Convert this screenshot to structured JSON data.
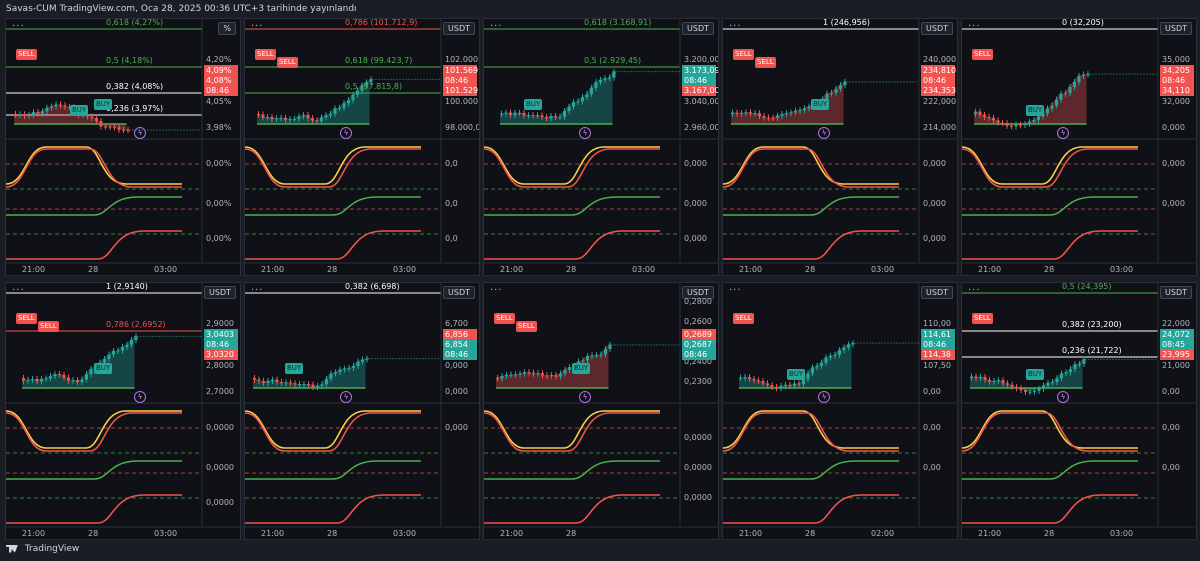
{
  "header": {
    "publish_info": "Savas-CUM TradingView.com, Oca 28, 2025 00:36 UTC+3 tarihinde yayınlandı"
  },
  "footer": {
    "brand": "TradingView"
  },
  "panels": [
    {
      "currency": "%",
      "axis": [
        "4,20%",
        "4,05%",
        "3,98%",
        "0,00%",
        "0,00%",
        "0,00%"
      ],
      "fibs": [
        {
          "label": "0,618 (4,27%)",
          "color": "#4caf50"
        },
        {
          "label": "0,5 (4,18%)",
          "color": "#4caf50"
        },
        {
          "label": "0,382 (4,08%)",
          "color": "#ffffff"
        },
        {
          "label": "0,236 (3,97%)",
          "color": "#ffffff"
        }
      ],
      "price_boxes": [
        {
          "text": "4,09%",
          "color": "red"
        },
        {
          "text": "4,08%",
          "color": "red"
        },
        {
          "text": "08:46",
          "color": "red"
        }
      ],
      "times": [
        "21:00",
        "28",
        "03:00"
      ],
      "tags": [
        "SELL",
        "BUY",
        "BUY"
      ]
    },
    {
      "currency": "USDT",
      "axis": [
        "102.000,0",
        "100.000,0",
        "98.000,0",
        "0,0",
        "0,0",
        "0,0"
      ],
      "fibs": [
        {
          "label": "0,786 (101.712,9)",
          "color": "#f05350"
        },
        {
          "label": "0,618 (99.423,7)",
          "color": "#4caf50"
        },
        {
          "label": "0,5 (97.815,8)",
          "color": "#4caf50"
        }
      ],
      "price_boxes": [
        {
          "text": "101.569,2",
          "color": "red"
        },
        {
          "text": "08:46",
          "color": "red"
        },
        {
          "text": "101.529,3",
          "color": "red"
        }
      ],
      "times": [
        "21:00",
        "28",
        "03:00"
      ],
      "tags": [
        "SELL",
        "SELL"
      ]
    },
    {
      "currency": "USDT",
      "axis": [
        "3.200,00",
        "3.040,00",
        "2.960,00",
        "0,000",
        "0,000",
        "0,000"
      ],
      "fibs": [
        {
          "label": "0,618 (3.168,91)",
          "color": "#4caf50"
        },
        {
          "label": "0,5 (2.929,45)",
          "color": "#4caf50"
        }
      ],
      "price_boxes": [
        {
          "text": "3.173,09",
          "color": "green"
        },
        {
          "text": "08:46",
          "color": "green"
        },
        {
          "text": "3.167,00",
          "color": "red"
        }
      ],
      "times": [
        "21:00",
        "28",
        "03:00"
      ],
      "tags": [
        "BUY"
      ]
    },
    {
      "currency": "USDT",
      "axis": [
        "240,000",
        "222,000",
        "214,000",
        "0,000",
        "0,000",
        "0,000"
      ],
      "fibs": [
        {
          "label": "1 (246,956)",
          "color": "#ffffff"
        }
      ],
      "price_boxes": [
        {
          "text": "234,810",
          "color": "red"
        },
        {
          "text": "08:46",
          "color": "red"
        },
        {
          "text": "234,353",
          "color": "red"
        }
      ],
      "times": [
        "21:00",
        "28",
        "03:00"
      ],
      "tags": [
        "SELL",
        "SELL",
        "BUY"
      ]
    },
    {
      "currency": "USDT",
      "axis": [
        "35,000",
        "32,000",
        "0,000",
        "0,000",
        "0,000"
      ],
      "fibs": [
        {
          "label": "0 (32,205)",
          "color": "#ffffff"
        }
      ],
      "price_boxes": [
        {
          "text": "34,205",
          "color": "red"
        },
        {
          "text": "08:46",
          "color": "red"
        },
        {
          "text": "34,110",
          "color": "red"
        }
      ],
      "times": [
        "21:00",
        "28",
        "03:00"
      ],
      "tags": [
        "SELL",
        "BUY"
      ]
    },
    {
      "currency": "USDT",
      "axis": [
        "2,9000",
        "2,8000",
        "2,7000",
        "0,0000",
        "0,0000",
        "0,0000"
      ],
      "fibs": [
        {
          "label": "1 (2,9140)",
          "color": "#ffffff"
        },
        {
          "label": "0,786 (2,6952)",
          "color": "#f05350"
        }
      ],
      "price_boxes": [
        {
          "text": "3,0403",
          "color": "green"
        },
        {
          "text": "08:46",
          "color": "green"
        },
        {
          "text": "3,0320",
          "color": "red"
        }
      ],
      "times": [
        "21:00",
        "28",
        "03:00"
      ],
      "tags": [
        "SELL",
        "SELL",
        "BUY"
      ]
    },
    {
      "currency": "USDT",
      "axis": [
        "6,700",
        "0,000",
        "0,000",
        "0,000"
      ],
      "fibs": [
        {
          "label": "0,382 (6,698)",
          "color": "#ffffff"
        }
      ],
      "price_boxes": [
        {
          "text": "6,856",
          "color": "red"
        },
        {
          "text": "6,854",
          "color": "green"
        },
        {
          "text": "08:46",
          "color": "green"
        }
      ],
      "times": [
        "21:00",
        "28",
        "03:00"
      ],
      "tags": [
        "BUY"
      ]
    },
    {
      "currency": "USDT",
      "axis": [
        "0,2800",
        "0,2600",
        "0,2500",
        "0,2400",
        "0,2300",
        "0,0000",
        "0,0000",
        "0,0000"
      ],
      "fibs": [],
      "price_boxes": [
        {
          "text": "0,2689",
          "color": "red"
        },
        {
          "text": "0,2687",
          "color": "green"
        },
        {
          "text": "08:46",
          "color": "green"
        }
      ],
      "times": [
        "21:00",
        "28"
      ],
      "tags": [
        "SELL",
        "SELL",
        "BUY"
      ]
    },
    {
      "currency": "USDT",
      "axis": [
        "110,00",
        "107,50",
        "0,00",
        "0,00",
        "0,00"
      ],
      "fibs": [],
      "price_boxes": [
        {
          "text": "114,61",
          "color": "green"
        },
        {
          "text": "08:46",
          "color": "green"
        },
        {
          "text": "114,38",
          "color": "red"
        }
      ],
      "times": [
        "21:00",
        "28",
        "02:00"
      ],
      "tags": [
        "SELL",
        "BUY"
      ]
    },
    {
      "currency": "USDT",
      "axis": [
        "22,000",
        "21,000",
        "0,00",
        "0,00",
        "0,00"
      ],
      "fibs": [
        {
          "label": "0,5 (24,395)",
          "color": "#4caf50"
        },
        {
          "label": "0,382 (23,200)",
          "color": "#ffffff"
        },
        {
          "label": "0,236 (21,722)",
          "color": "#ffffff"
        }
      ],
      "price_boxes": [
        {
          "text": "24,072",
          "color": "green"
        },
        {
          "text": "08:45",
          "color": "green"
        },
        {
          "text": "23,995",
          "color": "red"
        }
      ],
      "times": [
        "21:00",
        "28",
        "03:00"
      ],
      "tags": [
        "SELL",
        "BUY"
      ]
    }
  ]
}
